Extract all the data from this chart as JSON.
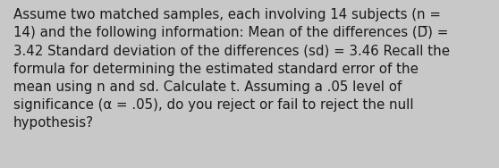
{
  "lines": [
    "Assume two matched samples, each involving 14 subjects (n =",
    "14) and the following information: Mean of the differences (D̅) =",
    "3.42 Standard deviation of the differences (sd) = 3.46 Recall the",
    "formula for determining the estimated standard error of the",
    "mean using n and sd. Calculate t. Assuming a .05 level of",
    "significance (α = .05), do you reject or fail to reject the null",
    "hypothesis?"
  ],
  "background_color": "#c8c8c8",
  "text_color": "#1a1a1a",
  "font_size": 10.8,
  "fig_width": 5.58,
  "fig_height": 1.88,
  "dpi": 100
}
